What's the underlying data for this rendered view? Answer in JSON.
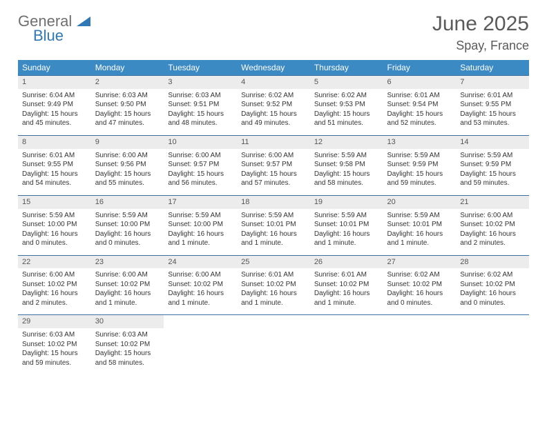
{
  "logo": {
    "word1": "General",
    "word2": "Blue"
  },
  "title": {
    "month": "June 2025",
    "location": "Spay, France"
  },
  "colors": {
    "header_bg": "#3b8ac4",
    "header_text": "#ffffff",
    "week_border": "#3b6ea0",
    "daynum_bg": "#ececec",
    "text": "#333333",
    "logo_gray": "#6f6f6f",
    "logo_blue": "#2f77b6",
    "title_color": "#5a5a5a"
  },
  "daysOfWeek": [
    "Sunday",
    "Monday",
    "Tuesday",
    "Wednesday",
    "Thursday",
    "Friday",
    "Saturday"
  ],
  "weeks": [
    [
      {
        "n": "1",
        "sunrise": "Sunrise: 6:04 AM",
        "sunset": "Sunset: 9:49 PM",
        "day1": "Daylight: 15 hours",
        "day2": "and 45 minutes."
      },
      {
        "n": "2",
        "sunrise": "Sunrise: 6:03 AM",
        "sunset": "Sunset: 9:50 PM",
        "day1": "Daylight: 15 hours",
        "day2": "and 47 minutes."
      },
      {
        "n": "3",
        "sunrise": "Sunrise: 6:03 AM",
        "sunset": "Sunset: 9:51 PM",
        "day1": "Daylight: 15 hours",
        "day2": "and 48 minutes."
      },
      {
        "n": "4",
        "sunrise": "Sunrise: 6:02 AM",
        "sunset": "Sunset: 9:52 PM",
        "day1": "Daylight: 15 hours",
        "day2": "and 49 minutes."
      },
      {
        "n": "5",
        "sunrise": "Sunrise: 6:02 AM",
        "sunset": "Sunset: 9:53 PM",
        "day1": "Daylight: 15 hours",
        "day2": "and 51 minutes."
      },
      {
        "n": "6",
        "sunrise": "Sunrise: 6:01 AM",
        "sunset": "Sunset: 9:54 PM",
        "day1": "Daylight: 15 hours",
        "day2": "and 52 minutes."
      },
      {
        "n": "7",
        "sunrise": "Sunrise: 6:01 AM",
        "sunset": "Sunset: 9:55 PM",
        "day1": "Daylight: 15 hours",
        "day2": "and 53 minutes."
      }
    ],
    [
      {
        "n": "8",
        "sunrise": "Sunrise: 6:01 AM",
        "sunset": "Sunset: 9:55 PM",
        "day1": "Daylight: 15 hours",
        "day2": "and 54 minutes."
      },
      {
        "n": "9",
        "sunrise": "Sunrise: 6:00 AM",
        "sunset": "Sunset: 9:56 PM",
        "day1": "Daylight: 15 hours",
        "day2": "and 55 minutes."
      },
      {
        "n": "10",
        "sunrise": "Sunrise: 6:00 AM",
        "sunset": "Sunset: 9:57 PM",
        "day1": "Daylight: 15 hours",
        "day2": "and 56 minutes."
      },
      {
        "n": "11",
        "sunrise": "Sunrise: 6:00 AM",
        "sunset": "Sunset: 9:57 PM",
        "day1": "Daylight: 15 hours",
        "day2": "and 57 minutes."
      },
      {
        "n": "12",
        "sunrise": "Sunrise: 5:59 AM",
        "sunset": "Sunset: 9:58 PM",
        "day1": "Daylight: 15 hours",
        "day2": "and 58 minutes."
      },
      {
        "n": "13",
        "sunrise": "Sunrise: 5:59 AM",
        "sunset": "Sunset: 9:59 PM",
        "day1": "Daylight: 15 hours",
        "day2": "and 59 minutes."
      },
      {
        "n": "14",
        "sunrise": "Sunrise: 5:59 AM",
        "sunset": "Sunset: 9:59 PM",
        "day1": "Daylight: 15 hours",
        "day2": "and 59 minutes."
      }
    ],
    [
      {
        "n": "15",
        "sunrise": "Sunrise: 5:59 AM",
        "sunset": "Sunset: 10:00 PM",
        "day1": "Daylight: 16 hours",
        "day2": "and 0 minutes."
      },
      {
        "n": "16",
        "sunrise": "Sunrise: 5:59 AM",
        "sunset": "Sunset: 10:00 PM",
        "day1": "Daylight: 16 hours",
        "day2": "and 0 minutes."
      },
      {
        "n": "17",
        "sunrise": "Sunrise: 5:59 AM",
        "sunset": "Sunset: 10:00 PM",
        "day1": "Daylight: 16 hours",
        "day2": "and 1 minute."
      },
      {
        "n": "18",
        "sunrise": "Sunrise: 5:59 AM",
        "sunset": "Sunset: 10:01 PM",
        "day1": "Daylight: 16 hours",
        "day2": "and 1 minute."
      },
      {
        "n": "19",
        "sunrise": "Sunrise: 5:59 AM",
        "sunset": "Sunset: 10:01 PM",
        "day1": "Daylight: 16 hours",
        "day2": "and 1 minute."
      },
      {
        "n": "20",
        "sunrise": "Sunrise: 5:59 AM",
        "sunset": "Sunset: 10:01 PM",
        "day1": "Daylight: 16 hours",
        "day2": "and 1 minute."
      },
      {
        "n": "21",
        "sunrise": "Sunrise: 6:00 AM",
        "sunset": "Sunset: 10:02 PM",
        "day1": "Daylight: 16 hours",
        "day2": "and 2 minutes."
      }
    ],
    [
      {
        "n": "22",
        "sunrise": "Sunrise: 6:00 AM",
        "sunset": "Sunset: 10:02 PM",
        "day1": "Daylight: 16 hours",
        "day2": "and 2 minutes."
      },
      {
        "n": "23",
        "sunrise": "Sunrise: 6:00 AM",
        "sunset": "Sunset: 10:02 PM",
        "day1": "Daylight: 16 hours",
        "day2": "and 1 minute."
      },
      {
        "n": "24",
        "sunrise": "Sunrise: 6:00 AM",
        "sunset": "Sunset: 10:02 PM",
        "day1": "Daylight: 16 hours",
        "day2": "and 1 minute."
      },
      {
        "n": "25",
        "sunrise": "Sunrise: 6:01 AM",
        "sunset": "Sunset: 10:02 PM",
        "day1": "Daylight: 16 hours",
        "day2": "and 1 minute."
      },
      {
        "n": "26",
        "sunrise": "Sunrise: 6:01 AM",
        "sunset": "Sunset: 10:02 PM",
        "day1": "Daylight: 16 hours",
        "day2": "and 1 minute."
      },
      {
        "n": "27",
        "sunrise": "Sunrise: 6:02 AM",
        "sunset": "Sunset: 10:02 PM",
        "day1": "Daylight: 16 hours",
        "day2": "and 0 minutes."
      },
      {
        "n": "28",
        "sunrise": "Sunrise: 6:02 AM",
        "sunset": "Sunset: 10:02 PM",
        "day1": "Daylight: 16 hours",
        "day2": "and 0 minutes."
      }
    ],
    [
      {
        "n": "29",
        "sunrise": "Sunrise: 6:03 AM",
        "sunset": "Sunset: 10:02 PM",
        "day1": "Daylight: 15 hours",
        "day2": "and 59 minutes."
      },
      {
        "n": "30",
        "sunrise": "Sunrise: 6:03 AM",
        "sunset": "Sunset: 10:02 PM",
        "day1": "Daylight: 15 hours",
        "day2": "and 58 minutes."
      },
      null,
      null,
      null,
      null,
      null
    ]
  ]
}
